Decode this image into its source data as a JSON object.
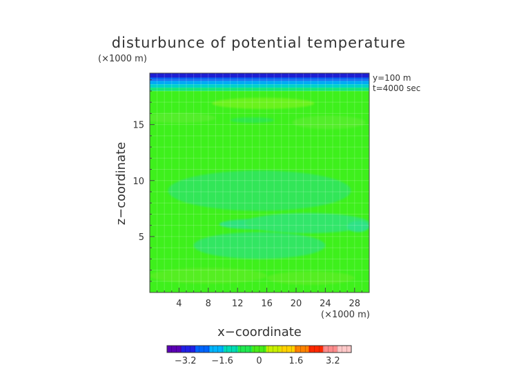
{
  "chart_data": {
    "type": "heatmap",
    "title": "disturbunce of potential temperature",
    "y_unit_label": "(×1000 m)",
    "x_unit_label": "(×1000 m)",
    "xlabel": "x−coordinate",
    "ylabel": "z−coordinate",
    "annotations": [
      "y=100 m",
      "t=4000 sec"
    ],
    "xlim": [
      0,
      30
    ],
    "ylim": [
      0,
      19.6
    ],
    "xticks": [
      4,
      8,
      12,
      16,
      20,
      24,
      28
    ],
    "xtick_labels": [
      "4",
      "8",
      "12",
      "16",
      "20",
      "24",
      "28"
    ],
    "yticks": [
      5,
      10,
      15
    ],
    "ytick_labels": [
      "5",
      "10",
      "15"
    ],
    "colorbar": {
      "range": [
        -4,
        4
      ],
      "ticks": [
        -3.2,
        -1.6,
        0,
        1.6,
        3.2
      ],
      "tick_labels": [
        "−3.2",
        "−1.6",
        "0",
        "1.6",
        "3.2"
      ],
      "colors": [
        "#5a00b4",
        "#2020e6",
        "#0064ff",
        "#00b4ff",
        "#00dcb4",
        "#20e850",
        "#48ec18",
        "#c8f000",
        "#ffd200",
        "#ff8200",
        "#ff2800",
        "#ff8c8c",
        "#ffc8c8"
      ]
    },
    "bands": [
      {
        "z_top": 19.6,
        "z_bottom": 19.2,
        "value": -3.6,
        "color": "#1e1ed2"
      },
      {
        "z_top": 19.2,
        "z_bottom": 18.9,
        "value": -2.6,
        "color": "#0a64f0"
      },
      {
        "z_top": 18.9,
        "z_bottom": 18.6,
        "value": -1.6,
        "color": "#00aaf5"
      },
      {
        "z_top": 18.6,
        "z_bottom": 18.3,
        "value": -0.9,
        "color": "#00d2c8"
      },
      {
        "z_top": 18.3,
        "z_bottom": 18.0,
        "value": -0.4,
        "color": "#14e678"
      },
      {
        "z_top": 18.0,
        "z_bottom": 0,
        "value": 0,
        "color": "#3ef01c"
      }
    ],
    "regions": [
      {
        "value": 0.2,
        "color": "#6af21c",
        "z_center": 16.9,
        "x_center": 15.5,
        "x_halfwidth": 7,
        "z_halfheight": 0.5
      },
      {
        "value": 0.1,
        "color": "#52ee2c",
        "z_center": 15.6,
        "x_center": 4,
        "x_halfwidth": 5,
        "z_halfheight": 0.45
      },
      {
        "value": 0.1,
        "color": "#52ee2c",
        "z_center": 15.2,
        "x_center": 24.5,
        "x_halfwidth": 5,
        "z_halfheight": 0.6
      },
      {
        "value": -0.1,
        "color": "#2ee848",
        "z_center": 15.4,
        "x_center": 14,
        "x_halfwidth": 3,
        "z_halfheight": 0.25
      },
      {
        "value": -0.2,
        "color": "#30e658",
        "z_center": 9.1,
        "x_center": 15,
        "x_halfwidth": 12.5,
        "z_halfheight": 1.8
      },
      {
        "value": -0.3,
        "color": "#2ee27c",
        "z_center": 6.1,
        "x_center": 14,
        "x_halfwidth": 4.5,
        "z_halfheight": 0.45
      },
      {
        "value": -0.2,
        "color": "#30e66a",
        "z_center": 6.2,
        "x_center": 21.5,
        "x_halfwidth": 8.5,
        "z_halfheight": 0.9
      },
      {
        "value": -0.3,
        "color": "#2fe286",
        "z_center": 5.9,
        "x_center": 28.5,
        "x_halfwidth": 1.5,
        "z_halfheight": 0.5
      },
      {
        "value": -0.2,
        "color": "#30e662",
        "z_center": 4.2,
        "x_center": 15,
        "x_halfwidth": 9,
        "z_halfheight": 1.2
      },
      {
        "value": 0.1,
        "color": "#54ee24",
        "z_center": 1.5,
        "x_center": 8,
        "x_halfwidth": 8,
        "z_halfheight": 0.7
      },
      {
        "value": 0.1,
        "color": "#54ee24",
        "z_center": 1.3,
        "x_center": 22,
        "x_halfwidth": 6,
        "z_halfheight": 0.6
      }
    ]
  }
}
